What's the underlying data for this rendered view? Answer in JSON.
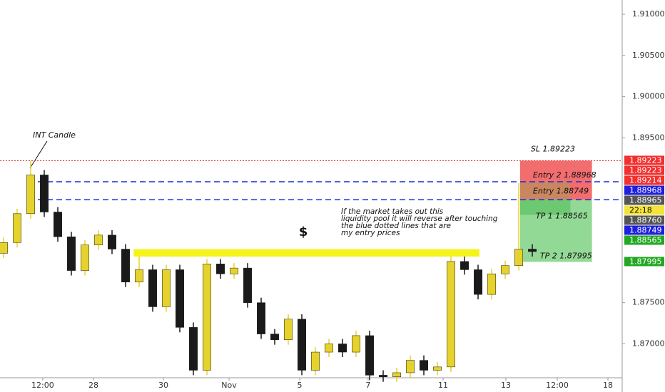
{
  "chart_data": {
    "type": "candlestick",
    "x": [
      0,
      1,
      2,
      3,
      4,
      5,
      6,
      7,
      8,
      9,
      10,
      11,
      12,
      13,
      14,
      15,
      16,
      17,
      18,
      19,
      20,
      21,
      22,
      23,
      24,
      25,
      26,
      27,
      28,
      29,
      30,
      31,
      32,
      33,
      34,
      35,
      36,
      37,
      38,
      39
    ],
    "open": [
      1.881,
      1.8823,
      1.8858,
      1.8905,
      1.886,
      1.883,
      1.8789,
      1.882,
      1.8832,
      1.8815,
      1.8775,
      1.879,
      1.8745,
      1.879,
      1.872,
      1.8668,
      1.8797,
      1.8785,
      1.8792,
      1.875,
      1.8712,
      1.8705,
      1.873,
      1.8668,
      1.869,
      1.87,
      1.869,
      1.871,
      1.8662,
      1.866,
      1.8665,
      1.868,
      1.8668,
      1.8672,
      1.88,
      1.879,
      1.876,
      1.8785,
      1.8795,
      1.8815
    ],
    "high": [
      1.8829,
      1.8864,
      1.8922,
      1.8911,
      1.8866,
      1.8836,
      1.8826,
      1.8838,
      1.8838,
      1.8821,
      1.8806,
      1.8796,
      1.8796,
      1.8796,
      1.8726,
      1.8803,
      1.8803,
      1.8798,
      1.8798,
      1.8756,
      1.8718,
      1.8736,
      1.8736,
      1.8696,
      1.8706,
      1.8706,
      1.8716,
      1.8716,
      1.8668,
      1.8671,
      1.8686,
      1.8686,
      1.8678,
      1.8806,
      1.8806,
      1.8796,
      1.8791,
      1.8801,
      1.8895,
      1.8821
    ],
    "low": [
      1.8804,
      1.8817,
      1.8852,
      1.8854,
      1.8824,
      1.8783,
      1.8783,
      1.8814,
      1.8809,
      1.8769,
      1.8769,
      1.8739,
      1.8739,
      1.8714,
      1.8662,
      1.8662,
      1.8779,
      1.8779,
      1.8744,
      1.8706,
      1.8699,
      1.8699,
      1.8662,
      1.8662,
      1.8684,
      1.8684,
      1.8684,
      1.8656,
      1.8654,
      1.8654,
      1.8659,
      1.8662,
      1.8662,
      1.8666,
      1.8784,
      1.8754,
      1.8754,
      1.8779,
      1.8789,
      1.8806
    ],
    "close": [
      1.8823,
      1.8858,
      1.8905,
      1.886,
      1.883,
      1.8789,
      1.882,
      1.8832,
      1.8815,
      1.8775,
      1.879,
      1.8745,
      1.879,
      1.872,
      1.8668,
      1.8797,
      1.8785,
      1.8792,
      1.875,
      1.8712,
      1.8705,
      1.873,
      1.8668,
      1.869,
      1.87,
      1.869,
      1.871,
      1.8662,
      1.866,
      1.8665,
      1.868,
      1.8668,
      1.8672,
      1.88,
      1.879,
      1.876,
      1.8785,
      1.8795,
      1.8815,
      1.8812
    ],
    "up_color": "#e6d22c",
    "down_color": "#1a1a1a",
    "xlim": [
      -0.263,
      45.63
    ],
    "xticks": [
      {
        "value": 2.89,
        "label": "12:00"
      },
      {
        "value": 6.63,
        "label": "28"
      },
      {
        "value": 11.79,
        "label": "30"
      },
      {
        "value": 16.63,
        "label": "Nov"
      },
      {
        "value": 21.84,
        "label": "5"
      },
      {
        "value": 26.89,
        "label": "7"
      },
      {
        "value": 32.42,
        "label": "11"
      },
      {
        "value": 37.05,
        "label": "13"
      },
      {
        "value": 40.84,
        "label": "12:00"
      },
      {
        "value": 44.58,
        "label": "18"
      }
    ],
    "ylim": [
      1.86589,
      1.91173
    ],
    "yticks": [
      {
        "value": 1.91,
        "label": "1.91000"
      },
      {
        "value": 1.905,
        "label": "1.90500"
      },
      {
        "value": 1.9,
        "label": "1.90000"
      },
      {
        "value": 1.895,
        "label": "1.89500"
      },
      {
        "value": 1.875,
        "label": "1.87500"
      },
      {
        "value": 1.87,
        "label": "1.87000"
      }
    ],
    "grid": false,
    "levels": [
      {
        "value": 1.89223,
        "color": "#e53935",
        "style": "dotted"
      },
      {
        "value": 1.88968,
        "color": "#1a2bd6",
        "style": "dashed"
      },
      {
        "value": 1.88749,
        "color": "#1a2bd6",
        "style": "dashed"
      }
    ],
    "zone": {
      "top": 1.8815,
      "bottom": 1.8806,
      "color": "#f4f41a",
      "x": [
        9.6,
        35.1
      ]
    },
    "position": {
      "x": [
        38.1,
        43.4
      ],
      "sl": {
        "value": 1.89223,
        "label": "SL   1.89223"
      },
      "entry2": {
        "value": 1.88968,
        "label": "Entry 2    1.88968"
      },
      "entry1": {
        "value": 1.88749,
        "label": "Entry 1.88749"
      },
      "tp1": {
        "value": 1.88565,
        "label": "TP 1  1.88565"
      },
      "tp2": {
        "value": 1.87995,
        "label": "TP 2  1.87995"
      },
      "loss_color": "#f26d6d",
      "profit_color": "#93d996"
    },
    "price_labels": [
      {
        "value": 1.89223,
        "label": "1.89223",
        "color": "#f23030"
      },
      {
        "value": 1.89223,
        "label": "1.89223",
        "color": "#f23030"
      },
      {
        "value": 1.89214,
        "label": "1.89214",
        "color": "#f23030"
      },
      {
        "value": 1.88968,
        "label": "1.88968",
        "color": "#1f1fe0"
      },
      {
        "value": 1.88965,
        "label": "1.88965",
        "color": "#555555"
      },
      {
        "label": "22:18",
        "color": "#f2e43a"
      },
      {
        "value": 1.8876,
        "label": "1.88760",
        "color": "#555555"
      },
      {
        "value": 1.88749,
        "label": "1.88749",
        "color": "#1f1fe0"
      },
      {
        "value": 1.88565,
        "label": "1.88565",
        "color": "#22a822"
      },
      {
        "value": 1.87995,
        "label": "1.87995",
        "color": "#22a822"
      }
    ],
    "annotations": {
      "int_candle": "INT Candle",
      "dollar": "$",
      "note": [
        "If the market takes out this",
        "liquidity pool it will reverse after touching",
        "the blue dotted lines that are",
        "my entry prices"
      ]
    }
  }
}
